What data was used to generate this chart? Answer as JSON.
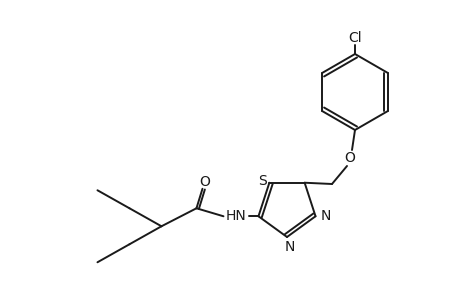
{
  "background_color": "#ffffff",
  "line_color": "#1a1a1a",
  "line_width": 1.4,
  "font_size": 10,
  "fig_width": 4.6,
  "fig_height": 3.0,
  "dpi": 100,
  "xlim": [
    0,
    460
  ],
  "ylim": [
    0,
    300
  ]
}
